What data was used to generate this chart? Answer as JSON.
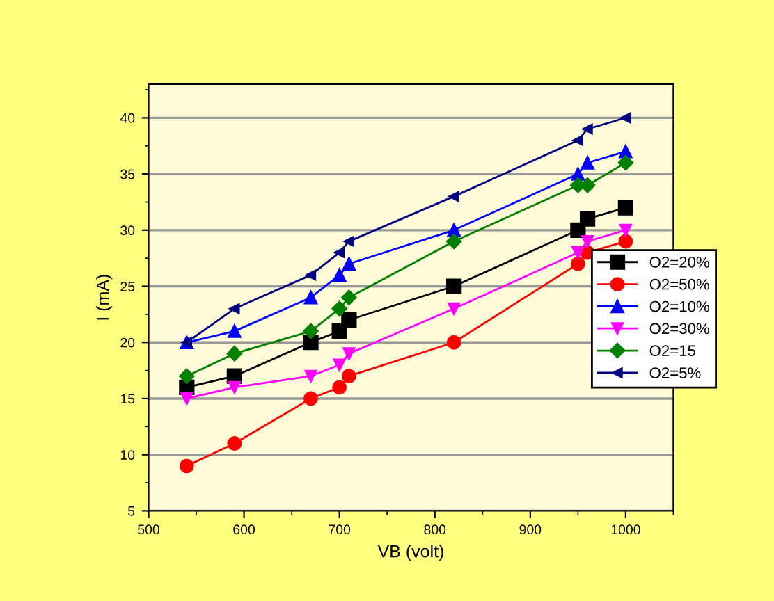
{
  "chart_data": {
    "type": "line",
    "xlabel": "VB (volt)",
    "ylabel": "I (mA)",
    "x": [
      540,
      590,
      670,
      700,
      710,
      820,
      950,
      960,
      1000
    ],
    "series": [
      {
        "name": "O2=20%",
        "color": "#000000",
        "marker": "square",
        "values": [
          16,
          17,
          20,
          21,
          22,
          25,
          30,
          31,
          32
        ]
      },
      {
        "name": "O2=50%",
        "color": "#ff0000",
        "marker": "circle",
        "values": [
          9,
          11,
          15,
          16,
          17,
          20,
          27,
          28,
          29
        ]
      },
      {
        "name": "O2=10%",
        "color": "#0000ff",
        "marker": "triangle",
        "values": [
          20,
          21,
          24,
          26,
          27,
          30,
          35,
          36,
          37
        ]
      },
      {
        "name": "O2=30%",
        "color": "#ff00ff",
        "marker": "triangle_down",
        "values": [
          15,
          16,
          17,
          18,
          19,
          23,
          28,
          29,
          30
        ]
      },
      {
        "name": "O2=15",
        "color": "#008000",
        "marker": "diamond",
        "values": [
          17,
          19,
          21,
          23,
          24,
          29,
          34,
          34,
          36
        ]
      },
      {
        "name": "O2=5%",
        "color": "#000080",
        "marker": "triangle_left",
        "values": [
          20,
          23,
          26,
          28,
          29,
          33,
          38,
          39,
          40
        ]
      }
    ],
    "xlim": [
      500,
      1050
    ],
    "xticks": [
      500,
      600,
      700,
      800,
      900,
      1000
    ],
    "ylim": [
      5,
      43
    ],
    "yticks": [
      5,
      10,
      15,
      20,
      25,
      30,
      35,
      40
    ],
    "grid": "y",
    "legend": "right",
    "line_style": "solid"
  }
}
